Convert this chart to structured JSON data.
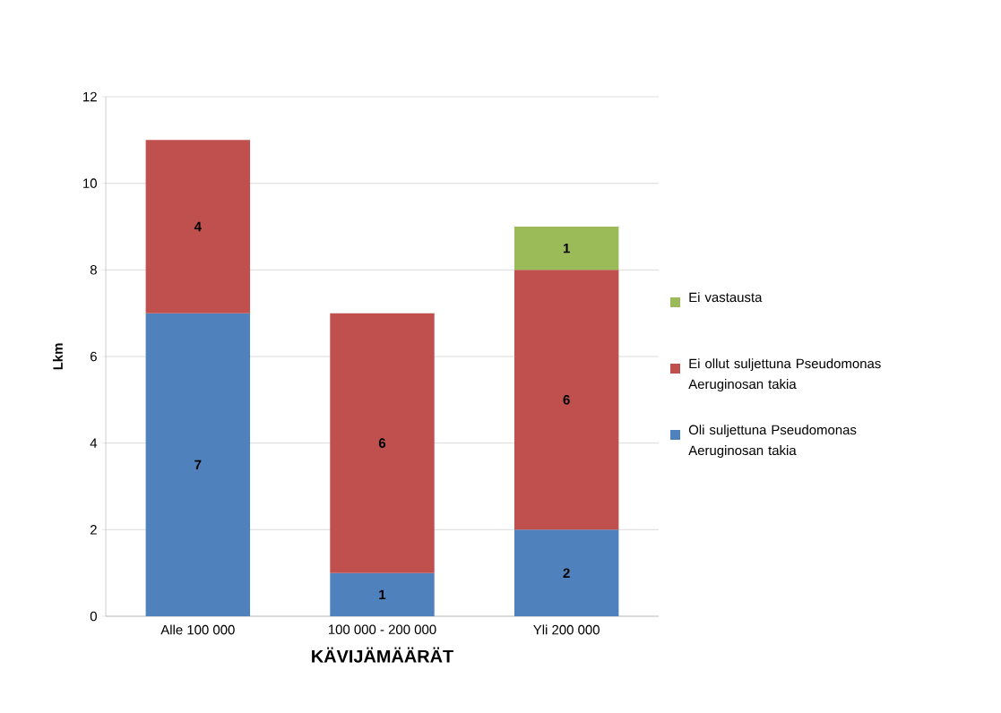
{
  "chart_data": {
    "type": "bar",
    "stacked": true,
    "xlabel": "KÄVIJÄMÄÄRÄT",
    "ylabel": "Lkm",
    "categories": [
      "Alle 100 000",
      "100 000 - 200 000",
      "Yli 200 000"
    ],
    "series": [
      {
        "name": "Oli suljettuna Pseudomonas Aeruginosan takia",
        "color": "#4f81bd",
        "values": [
          7,
          1,
          2
        ]
      },
      {
        "name": "Ei ollut suljettuna Pseudomonas Aeruginosan takia",
        "color": "#c0504d",
        "values": [
          4,
          6,
          6
        ]
      },
      {
        "name": "Ei vastausta",
        "color": "#9bbb59",
        "values": [
          null,
          null,
          1
        ]
      }
    ],
    "ylim": [
      0,
      12
    ],
    "yticks": [
      0,
      2,
      4,
      6,
      8,
      10,
      12
    ],
    "grid": "y",
    "legend": "right",
    "data_labels": true
  }
}
